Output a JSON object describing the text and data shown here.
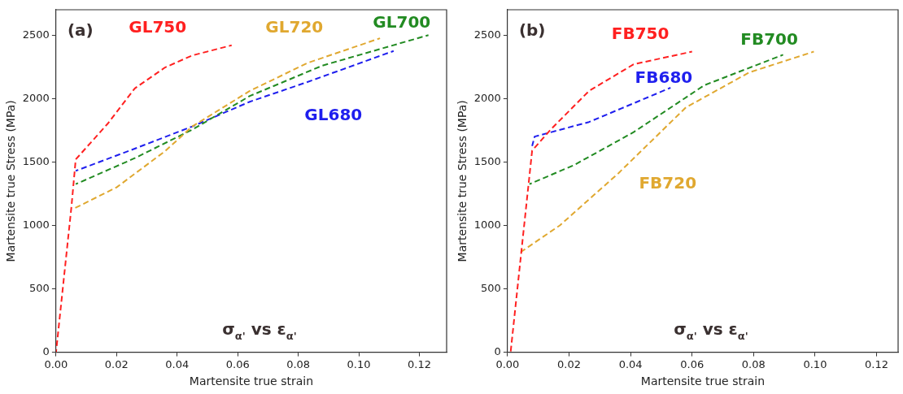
{
  "chart_data": [
    {
      "type": "line",
      "xlabel": "Martensite true strain",
      "ylabel": "Martensite true Stress (MPa)",
      "xlim": [
        0,
        0.129
      ],
      "ylim": [
        0,
        2700
      ],
      "xticks": [
        {
          "value": 0,
          "label": "0.00"
        },
        {
          "value": 0.02,
          "label": "0.02"
        },
        {
          "value": 0.04,
          "label": "0.04"
        },
        {
          "value": 0.06,
          "label": "0.06"
        },
        {
          "value": 0.08,
          "label": "0.08"
        },
        {
          "value": 0.1,
          "label": "0.10"
        },
        {
          "value": 0.12,
          "label": "0.12"
        }
      ],
      "yticks": [
        0,
        500,
        1000,
        1500,
        2000,
        2500
      ],
      "grid": false,
      "legend": false,
      "marker": "none",
      "line_style": "dashed",
      "annotations": [
        "(a)",
        "σ$_{α'}$ vs ε$_{α'}$"
      ],
      "series": [
        {
          "name": "GL750",
          "color": "#ff2020",
          "x": [
            0,
            0.0051,
            0.0065,
            0.017,
            0.026,
            0.036,
            0.045,
            0.058
          ],
          "values": [
            0,
            1150,
            1520,
            1800,
            2080,
            2245,
            2340,
            2420
          ]
        },
        {
          "name": "GL720",
          "color": "#e0a830",
          "x": [
            0.0057,
            0.02,
            0.036,
            0.045,
            0.064,
            0.083,
            0.107
          ],
          "values": [
            1130,
            1300,
            1585,
            1780,
            2060,
            2280,
            2475
          ]
        },
        {
          "name": "GL700",
          "color": "#228b22",
          "x": [
            0.0065,
            0.026,
            0.045,
            0.064,
            0.088,
            0.123
          ],
          "values": [
            1325,
            1530,
            1755,
            2020,
            2260,
            2500
          ]
        },
        {
          "name": "GL680",
          "color": "#1f1fee",
          "x": [
            0.0065,
            0.026,
            0.045,
            0.064,
            0.083,
            0.1115
          ],
          "values": [
            1430,
            1605,
            1780,
            1975,
            2130,
            2375
          ]
        }
      ]
    },
    {
      "type": "line",
      "xlabel": "Martensite true strain",
      "ylabel": "Martensite true Stress (MPa)",
      "xlim": [
        0,
        0.127
      ],
      "ylim": [
        0,
        2700
      ],
      "xticks": [
        {
          "value": 0,
          "label": "0.00"
        },
        {
          "value": 0.02,
          "label": "0.02"
        },
        {
          "value": 0.04,
          "label": "0.04"
        },
        {
          "value": 0.06,
          "label": "0.06"
        },
        {
          "value": 0.08,
          "label": "0.08"
        },
        {
          "value": 0.1,
          "label": "0.10"
        },
        {
          "value": 0.12,
          "label": "0.12"
        }
      ],
      "yticks": [
        0,
        500,
        1000,
        1500,
        2000,
        2500
      ],
      "grid": false,
      "legend": false,
      "marker": "none",
      "line_style": "dashed",
      "annotations": [
        "(b)",
        "σ$_{α'}$ vs ε$_{α'}$"
      ],
      "series": [
        {
          "name": "FB750",
          "color": "#ff2020",
          "x": [
            0.001,
            0.008,
            0.014,
            0.0265,
            0.041,
            0.06
          ],
          "values": [
            0,
            1590,
            1755,
            2060,
            2270,
            2370
          ]
        },
        {
          "name": "FB700",
          "color": "#228b22",
          "x": [
            0.0071,
            0.0216,
            0.041,
            0.064,
            0.0896
          ],
          "values": [
            1325,
            1475,
            1735,
            2105,
            2345
          ]
        },
        {
          "name": "FB680",
          "color": "#1f1fee",
          "x": [
            0.008,
            0.0088,
            0.0265,
            0.053
          ],
          "values": [
            1625,
            1700,
            1815,
            2085
          ]
        },
        {
          "name": "FB720",
          "color": "#e0a830",
          "x": [
            0.0043,
            0.017,
            0.036,
            0.058,
            0.0785,
            0.0996
          ],
          "values": [
            790,
            1000,
            1410,
            1930,
            2205,
            2370
          ]
        }
      ]
    }
  ]
}
